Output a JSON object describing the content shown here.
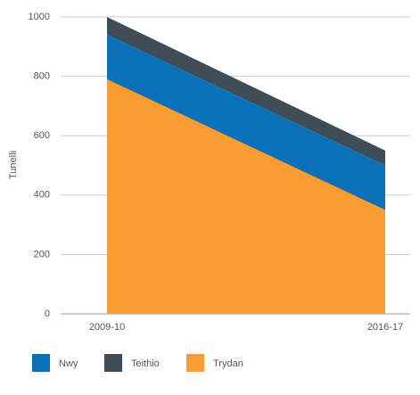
{
  "chart_data": {
    "type": "stacked_area",
    "y_label": "Tunelli",
    "categories": [
      "2009-10",
      "2016-17"
    ],
    "series": [
      {
        "name": "Nwy",
        "color": "#0a71b9",
        "values": [
          150,
          150
        ]
      },
      {
        "name": "Teithio",
        "color": "#3f4d56",
        "values": [
          60,
          50
        ]
      },
      {
        "name": "Trydan",
        "color": "#f99d33",
        "values": [
          790,
          350
        ]
      }
    ],
    "ylim": [
      0,
      1000
    ],
    "yticks": [
      0,
      200,
      400,
      600,
      800,
      1000
    ],
    "grid": true
  }
}
